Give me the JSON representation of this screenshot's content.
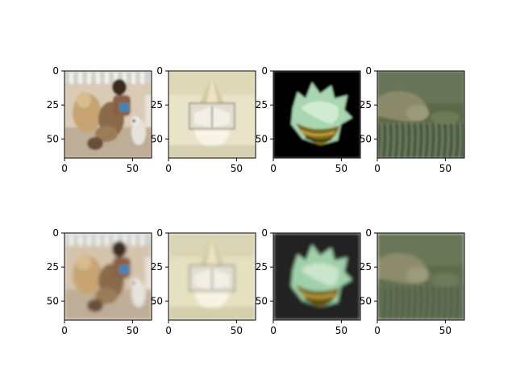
{
  "figure": {
    "background": "#ffffff",
    "rows": 2,
    "cols": 4
  },
  "chart_data": [
    {
      "type": "image",
      "subject": "woman-with-dogs",
      "row": 0,
      "col": 0,
      "xlim": [
        0,
        64
      ],
      "ylim": [
        0,
        64
      ],
      "xticks": [
        0,
        50
      ],
      "yticks": [
        0,
        25,
        50
      ],
      "dominant_colors": [
        "#d9cbb5",
        "#8a6a4a",
        "#c9b49a",
        "#3a2a1e"
      ]
    },
    {
      "type": "image",
      "subject": "sundial-plaque",
      "row": 0,
      "col": 1,
      "xlim": [
        0,
        64
      ],
      "ylim": [
        0,
        64
      ],
      "xticks": [
        0,
        50
      ],
      "yticks": [
        0,
        25,
        50
      ],
      "dominant_colors": [
        "#e9e4c8",
        "#d8d2ad",
        "#f4f2ea",
        "#b8b08a"
      ]
    },
    {
      "type": "image",
      "subject": "conch-shell",
      "row": 0,
      "col": 2,
      "xlim": [
        0,
        64
      ],
      "ylim": [
        0,
        64
      ],
      "xticks": [
        0,
        50
      ],
      "yticks": [
        0,
        25,
        50
      ],
      "dominant_colors": [
        "#000000",
        "#a8d6b0",
        "#7a6a1a",
        "#d8eed8"
      ]
    },
    {
      "type": "image",
      "subject": "manatee-seagrass",
      "row": 0,
      "col": 3,
      "xlim": [
        0,
        64
      ],
      "ylim": [
        0,
        64
      ],
      "xticks": [
        0,
        50
      ],
      "yticks": [
        0,
        25,
        50
      ],
      "dominant_colors": [
        "#5c6a4a",
        "#8a8a6a",
        "#4a5a44",
        "#9a9a7a"
      ]
    },
    {
      "type": "image",
      "subject": "woman-with-dogs",
      "row": 1,
      "col": 0,
      "xlim": [
        0,
        64
      ],
      "ylim": [
        0,
        64
      ],
      "xticks": [
        0,
        50
      ],
      "yticks": [
        0,
        25,
        50
      ],
      "dominant_colors": [
        "#d4c4ae",
        "#8a6a4a",
        "#c4ae94",
        "#3e2e22"
      ]
    },
    {
      "type": "image",
      "subject": "sundial-plaque",
      "row": 1,
      "col": 1,
      "xlim": [
        0,
        64
      ],
      "ylim": [
        0,
        64
      ],
      "xticks": [
        0,
        50
      ],
      "yticks": [
        0,
        25,
        50
      ],
      "dominant_colors": [
        "#e4e0c0",
        "#d2ccaa",
        "#f0eedf",
        "#b4ac88"
      ]
    },
    {
      "type": "image",
      "subject": "conch-shell",
      "row": 1,
      "col": 2,
      "xlim": [
        0,
        64
      ],
      "ylim": [
        0,
        64
      ],
      "xticks": [
        0,
        50
      ],
      "yticks": [
        0,
        25,
        50
      ],
      "dominant_colors": [
        "#202020",
        "#a0d0aa",
        "#74661c",
        "#d2e8d2"
      ]
    },
    {
      "type": "image",
      "subject": "manatee-seagrass",
      "row": 1,
      "col": 3,
      "xlim": [
        0,
        64
      ],
      "ylim": [
        0,
        64
      ],
      "xticks": [
        0,
        50
      ],
      "yticks": [
        0,
        25,
        50
      ],
      "dominant_colors": [
        "#5e6c4c",
        "#8c8c6c",
        "#4c5c46",
        "#9c9c7c"
      ]
    }
  ]
}
